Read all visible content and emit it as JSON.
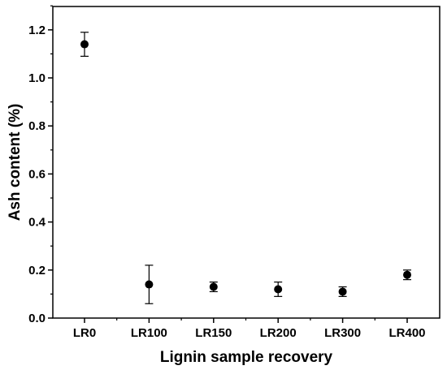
{
  "chart_data": {
    "type": "scatter",
    "title": "",
    "xlabel": "Lignin sample recovery",
    "ylabel": "Ash content (%)",
    "categories": [
      "LR0",
      "LR100",
      "LR150",
      "LR200",
      "LR300",
      "LR400"
    ],
    "values": [
      1.14,
      0.14,
      0.13,
      0.12,
      0.11,
      0.18
    ],
    "errors": [
      0.05,
      0.08,
      0.02,
      0.03,
      0.02,
      0.02
    ],
    "ylim": [
      0,
      1.3
    ],
    "yticks": [
      0.0,
      0.2,
      0.4,
      0.6,
      0.8,
      1.0,
      1.2
    ],
    "ytick_labels": [
      "0.0",
      "0.2",
      "0.4",
      "0.6",
      "0.8",
      "1.0",
      "1.2"
    ],
    "grid": false,
    "legend": "none",
    "marker_color": "#000000"
  }
}
